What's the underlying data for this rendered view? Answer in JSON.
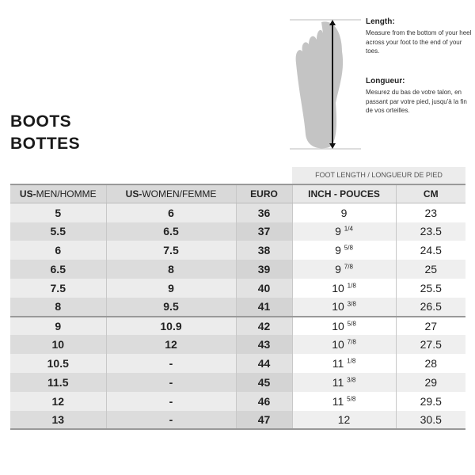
{
  "title": {
    "line1": "BOOTS",
    "line2": "BOTTES"
  },
  "info": {
    "en_title": "Length:",
    "en_text": "Measure from the bottom of your heel across your foot to the end of your toes.",
    "fr_title": "Longueur:",
    "fr_text": "Mesurez du bas de votre talon, en passant par votre pied, jusqu'à la fin de vos orteilles."
  },
  "foot_length_label": "FOOT LENGTH / LONGUEUR DE PIED",
  "headers": {
    "men_bold": "US-",
    "men": "MEN/HOMME",
    "women_bold": "US-",
    "women": "WOMEN/FEMME",
    "euro": "EURO",
    "inch": "INCH - POUCES",
    "cm": "CM"
  },
  "rows": [
    {
      "men": "5",
      "women": "6",
      "euro": "36",
      "inch": "9",
      "frac": "",
      "cm": "23"
    },
    {
      "men": "5.5",
      "women": "6.5",
      "euro": "37",
      "inch": "9",
      "frac": "1/4",
      "cm": "23.5"
    },
    {
      "men": "6",
      "women": "7.5",
      "euro": "38",
      "inch": "9",
      "frac": "5/8",
      "cm": "24.5"
    },
    {
      "men": "6.5",
      "women": "8",
      "euro": "39",
      "inch": "9",
      "frac": "7/8",
      "cm": "25"
    },
    {
      "men": "7.5",
      "women": "9",
      "euro": "40",
      "inch": "10",
      "frac": "1/8",
      "cm": "25.5"
    },
    {
      "men": "8",
      "women": "9.5",
      "euro": "41",
      "inch": "10",
      "frac": "3/8",
      "cm": "26.5"
    },
    {
      "men": "9",
      "women": "10.9",
      "euro": "42",
      "inch": "10",
      "frac": "5/8",
      "cm": "27"
    },
    {
      "men": "10",
      "women": "12",
      "euro": "43",
      "inch": "10",
      "frac": "7/8",
      "cm": "27.5"
    },
    {
      "men": "10.5",
      "women": "-",
      "euro": "44",
      "inch": "11",
      "frac": "1/8",
      "cm": "28"
    },
    {
      "men": "11.5",
      "women": "-",
      "euro": "45",
      "inch": "11",
      "frac": "3/8",
      "cm": "29"
    },
    {
      "men": "12",
      "women": "-",
      "euro": "46",
      "inch": "11",
      "frac": "5/8",
      "cm": "29.5"
    },
    {
      "men": "13",
      "women": "-",
      "euro": "47",
      "inch": "12",
      "frac": "",
      "cm": "30.5"
    }
  ]
}
